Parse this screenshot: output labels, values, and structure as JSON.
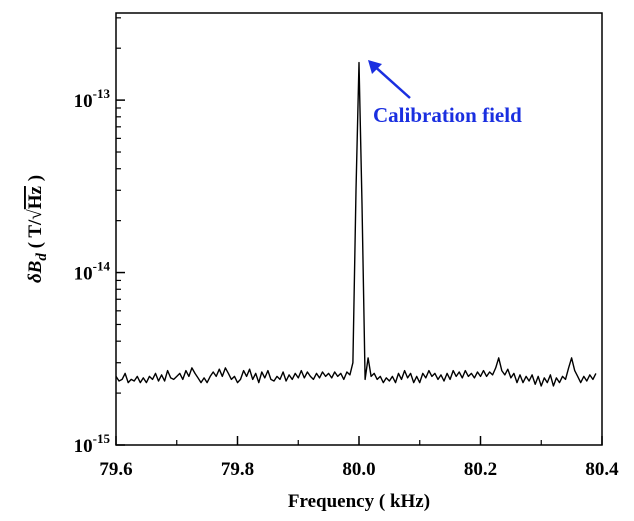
{
  "chart_data": {
    "type": "line",
    "xlabel": "Frequency ( kHz)",
    "ylabel": {
      "symbol": "δ",
      "var": "B",
      "sub": "d",
      "unit_open": " ( T/",
      "sqrt": "√",
      "unit_hz": "Hz",
      "unit_close": " )"
    },
    "xlim": [
      79.6,
      80.4
    ],
    "ylim": [
      1e-15,
      3.2e-13
    ],
    "yscale": "log",
    "x_ticks": [
      {
        "value": 79.6,
        "label": "79.6"
      },
      {
        "value": 79.8,
        "label": "79.8"
      },
      {
        "value": 80.0,
        "label": "80.0"
      },
      {
        "value": 80.2,
        "label": "80.2"
      },
      {
        "value": 80.4,
        "label": "80.4"
      }
    ],
    "y_ticks": [
      {
        "value": 1e-15,
        "base": "10",
        "exp": "-15"
      },
      {
        "value": 1e-14,
        "base": "10",
        "exp": "-14"
      },
      {
        "value": 1e-13,
        "base": "10",
        "exp": "-13"
      }
    ],
    "annotation": {
      "text": "Calibration field",
      "color": "#1a2fe0",
      "point_x": 80.004,
      "point_y": 1.65e-13
    },
    "series": [
      {
        "line_color": "#000000",
        "points": [
          [
            79.6,
            2.5e-15
          ],
          [
            79.605,
            2.35e-15
          ],
          [
            79.61,
            2.4e-15
          ],
          [
            79.615,
            2.6e-15
          ],
          [
            79.62,
            2.3e-15
          ],
          [
            79.625,
            2.4e-15
          ],
          [
            79.63,
            2.35e-15
          ],
          [
            79.635,
            2.5e-15
          ],
          [
            79.64,
            2.3e-15
          ],
          [
            79.645,
            2.45e-15
          ],
          [
            79.65,
            2.3e-15
          ],
          [
            79.655,
            2.5e-15
          ],
          [
            79.66,
            2.4e-15
          ],
          [
            79.665,
            2.6e-15
          ],
          [
            79.67,
            2.35e-15
          ],
          [
            79.675,
            2.55e-15
          ],
          [
            79.68,
            2.35e-15
          ],
          [
            79.685,
            2.7e-15
          ],
          [
            79.69,
            2.45e-15
          ],
          [
            79.695,
            2.4e-15
          ],
          [
            79.7,
            2.5e-15
          ],
          [
            79.705,
            2.6e-15
          ],
          [
            79.71,
            2.4e-15
          ],
          [
            79.715,
            2.7e-15
          ],
          [
            79.72,
            2.5e-15
          ],
          [
            79.725,
            2.8e-15
          ],
          [
            79.73,
            2.6e-15
          ],
          [
            79.735,
            2.45e-15
          ],
          [
            79.74,
            2.3e-15
          ],
          [
            79.745,
            2.45e-15
          ],
          [
            79.75,
            2.3e-15
          ],
          [
            79.755,
            2.5e-15
          ],
          [
            79.76,
            2.65e-15
          ],
          [
            79.765,
            2.5e-15
          ],
          [
            79.77,
            2.75e-15
          ],
          [
            79.775,
            2.5e-15
          ],
          [
            79.78,
            2.8e-15
          ],
          [
            79.785,
            2.6e-15
          ],
          [
            79.79,
            2.4e-15
          ],
          [
            79.795,
            2.5e-15
          ],
          [
            79.8,
            2.3e-15
          ],
          [
            79.805,
            2.4e-15
          ],
          [
            79.81,
            2.7e-15
          ],
          [
            79.815,
            2.5e-15
          ],
          [
            79.82,
            2.75e-15
          ],
          [
            79.825,
            2.4e-15
          ],
          [
            79.83,
            2.6e-15
          ],
          [
            79.835,
            2.3e-15
          ],
          [
            79.84,
            2.65e-15
          ],
          [
            79.845,
            2.45e-15
          ],
          [
            79.85,
            2.7e-15
          ],
          [
            79.855,
            2.4e-15
          ],
          [
            79.86,
            2.35e-15
          ],
          [
            79.865,
            2.5e-15
          ],
          [
            79.87,
            2.4e-15
          ],
          [
            79.875,
            2.65e-15
          ],
          [
            79.88,
            2.35e-15
          ],
          [
            79.885,
            2.55e-15
          ],
          [
            79.89,
            2.4e-15
          ],
          [
            79.895,
            2.6e-15
          ],
          [
            79.9,
            2.45e-15
          ],
          [
            79.905,
            2.7e-15
          ],
          [
            79.91,
            2.45e-15
          ],
          [
            79.915,
            2.65e-15
          ],
          [
            79.92,
            2.5e-15
          ],
          [
            79.925,
            2.4e-15
          ],
          [
            79.93,
            2.6e-15
          ],
          [
            79.935,
            2.45e-15
          ],
          [
            79.94,
            2.65e-15
          ],
          [
            79.945,
            2.5e-15
          ],
          [
            79.95,
            2.6e-15
          ],
          [
            79.955,
            2.45e-15
          ],
          [
            79.96,
            2.65e-15
          ],
          [
            79.965,
            2.5e-15
          ],
          [
            79.97,
            2.6e-15
          ],
          [
            79.975,
            2.4e-15
          ],
          [
            79.98,
            2.65e-15
          ],
          [
            79.985,
            2.55e-15
          ],
          [
            79.99,
            3e-15
          ],
          [
            79.995,
            3e-14
          ],
          [
            80.0,
            1.65e-13
          ],
          [
            80.005,
            2.5e-14
          ],
          [
            80.01,
            2.4e-15
          ],
          [
            80.015,
            3.2e-15
          ],
          [
            80.02,
            2.5e-15
          ],
          [
            80.025,
            2.6e-15
          ],
          [
            80.03,
            2.4e-15
          ],
          [
            80.035,
            2.5e-15
          ],
          [
            80.04,
            2.3e-15
          ],
          [
            80.045,
            2.45e-15
          ],
          [
            80.05,
            2.35e-15
          ],
          [
            80.055,
            2.5e-15
          ],
          [
            80.06,
            2.3e-15
          ],
          [
            80.065,
            2.6e-15
          ],
          [
            80.07,
            2.4e-15
          ],
          [
            80.075,
            2.7e-15
          ],
          [
            80.08,
            2.45e-15
          ],
          [
            80.085,
            2.6e-15
          ],
          [
            80.09,
            2.3e-15
          ],
          [
            80.095,
            2.5e-15
          ],
          [
            80.1,
            2.3e-15
          ],
          [
            80.105,
            2.6e-15
          ],
          [
            80.11,
            2.45e-15
          ],
          [
            80.115,
            2.7e-15
          ],
          [
            80.12,
            2.5e-15
          ],
          [
            80.125,
            2.6e-15
          ],
          [
            80.13,
            2.4e-15
          ],
          [
            80.135,
            2.55e-15
          ],
          [
            80.14,
            2.35e-15
          ],
          [
            80.145,
            2.6e-15
          ],
          [
            80.15,
            2.4e-15
          ],
          [
            80.155,
            2.7e-15
          ],
          [
            80.16,
            2.5e-15
          ],
          [
            80.165,
            2.65e-15
          ],
          [
            80.17,
            2.45e-15
          ],
          [
            80.175,
            2.7e-15
          ],
          [
            80.18,
            2.5e-15
          ],
          [
            80.185,
            2.6e-15
          ],
          [
            80.19,
            2.45e-15
          ],
          [
            80.195,
            2.65e-15
          ],
          [
            80.2,
            2.5e-15
          ],
          [
            80.205,
            2.7e-15
          ],
          [
            80.21,
            2.5e-15
          ],
          [
            80.215,
            2.65e-15
          ],
          [
            80.22,
            2.55e-15
          ],
          [
            80.225,
            2.8e-15
          ],
          [
            80.23,
            3.2e-15
          ],
          [
            80.235,
            2.7e-15
          ],
          [
            80.24,
            2.55e-15
          ],
          [
            80.245,
            2.75e-15
          ],
          [
            80.25,
            2.45e-15
          ],
          [
            80.255,
            2.6e-15
          ],
          [
            80.26,
            2.3e-15
          ],
          [
            80.265,
            2.55e-15
          ],
          [
            80.27,
            2.3e-15
          ],
          [
            80.275,
            2.5e-15
          ],
          [
            80.28,
            2.35e-15
          ],
          [
            80.285,
            2.55e-15
          ],
          [
            80.29,
            2.25e-15
          ],
          [
            80.295,
            2.5e-15
          ],
          [
            80.3,
            2.2e-15
          ],
          [
            80.305,
            2.45e-15
          ],
          [
            80.31,
            2.3e-15
          ],
          [
            80.315,
            2.55e-15
          ],
          [
            80.32,
            2.2e-15
          ],
          [
            80.325,
            2.45e-15
          ],
          [
            80.33,
            2.3e-15
          ],
          [
            80.335,
            2.5e-15
          ],
          [
            80.34,
            2.4e-15
          ],
          [
            80.345,
            2.8e-15
          ],
          [
            80.35,
            3.2e-15
          ],
          [
            80.355,
            2.7e-15
          ],
          [
            80.36,
            2.5e-15
          ],
          [
            80.365,
            2.3e-15
          ],
          [
            80.37,
            2.5e-15
          ],
          [
            80.375,
            2.35e-15
          ],
          [
            80.38,
            2.55e-15
          ],
          [
            80.385,
            2.4e-15
          ],
          [
            80.39,
            2.6e-15
          ]
        ]
      }
    ]
  }
}
